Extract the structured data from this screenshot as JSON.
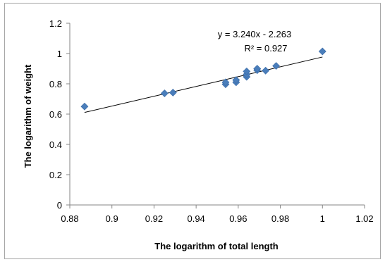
{
  "chart_data": {
    "type": "scatter",
    "xlabel": "The logarithm of total length",
    "ylabel": "The logarithm of weight",
    "xlim": [
      0.88,
      1.02
    ],
    "ylim": [
      0,
      1.2
    ],
    "xticks": [
      "0.88",
      "0.9",
      "0.92",
      "0.94",
      "0.96",
      "0.98",
      "1",
      "1.02"
    ],
    "yticks": [
      "0",
      "0.2",
      "0.4",
      "0.6",
      "0.8",
      "1",
      "1.2"
    ],
    "points": [
      {
        "x": 0.887,
        "y": 0.65
      },
      {
        "x": 0.925,
        "y": 0.737
      },
      {
        "x": 0.929,
        "y": 0.742
      },
      {
        "x": 0.954,
        "y": 0.797
      },
      {
        "x": 0.954,
        "y": 0.81
      },
      {
        "x": 0.959,
        "y": 0.81
      },
      {
        "x": 0.959,
        "y": 0.825
      },
      {
        "x": 0.964,
        "y": 0.846
      },
      {
        "x": 0.964,
        "y": 0.862
      },
      {
        "x": 0.964,
        "y": 0.882
      },
      {
        "x": 0.969,
        "y": 0.89
      },
      {
        "x": 0.969,
        "y": 0.9
      },
      {
        "x": 0.973,
        "y": 0.887
      },
      {
        "x": 0.978,
        "y": 0.918
      },
      {
        "x": 1.0,
        "y": 1.014
      }
    ],
    "trendline": {
      "x_start": 0.887,
      "x_end": 1.0,
      "slope": 3.24,
      "intercept": -2.263
    },
    "equation": "y = 3.240x - 2.263",
    "r_squared": "R² = 0.927",
    "marker_color": "#4a7ebb",
    "grid": false,
    "legend": "none"
  }
}
